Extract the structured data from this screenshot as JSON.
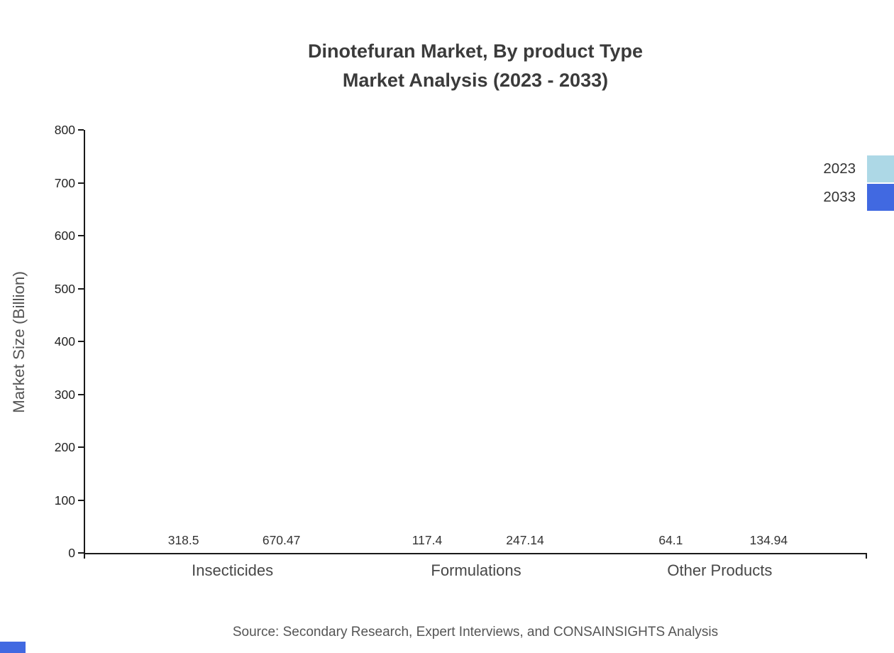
{
  "title": {
    "line1": "Dinotefuran Market, By product Type",
    "line2": "Market Analysis (2023 - 2033)"
  },
  "source": "Source: Secondary Research, Expert Interviews, and CONSAINSIGHTS Analysis",
  "colors": {
    "series_2023": "#add8e6",
    "series_2033": "#4169e1",
    "axis": "#1a1a1a",
    "corner_mark": "#4169e1"
  },
  "chart_data": {
    "type": "bar",
    "categories": [
      "Insecticides",
      "Formulations",
      "Other Products"
    ],
    "series": [
      {
        "name": "2023",
        "color": "#add8e6",
        "values": [
          318.5,
          117.4,
          64.1
        ]
      },
      {
        "name": "2033",
        "color": "#4169e1",
        "values": [
          670.47,
          247.14,
          134.94
        ]
      }
    ],
    "title": "Dinotefuran Market, By product Type Market Analysis (2023 - 2033)",
    "xlabel": "",
    "ylabel": "Market Size (Billion)",
    "ylim": [
      0,
      800
    ],
    "ytick_step": 100,
    "grid": false,
    "legend_position": "top-right",
    "value_labels": true
  }
}
